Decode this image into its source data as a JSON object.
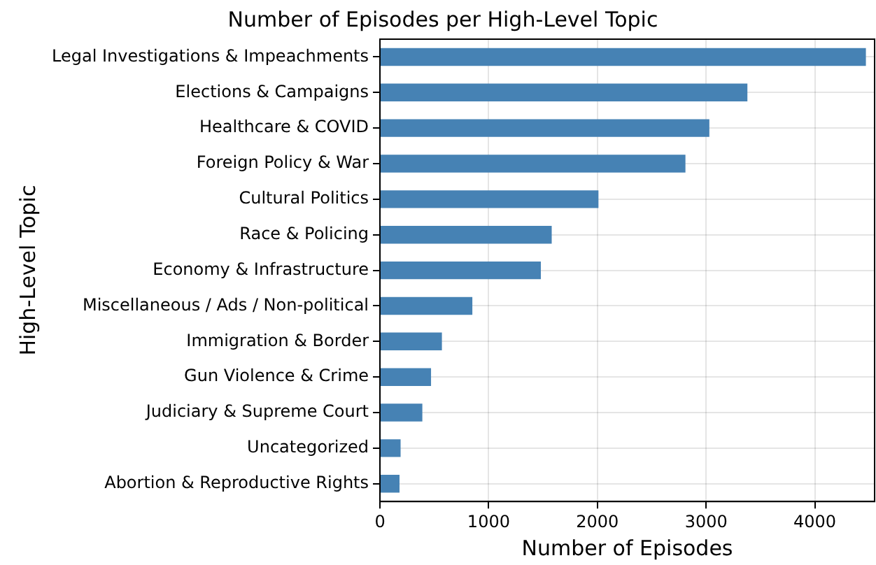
{
  "chart_data": {
    "type": "bar",
    "orientation": "horizontal",
    "title": "Number of Episodes per High-Level Topic",
    "xlabel": "Number of Episodes",
    "ylabel": "High-Level Topic",
    "categories": [
      "Legal Investigations & Impeachments",
      "Elections & Campaigns",
      "Healthcare & COVID",
      "Foreign Policy & War",
      "Cultural Politics",
      "Race & Policing",
      "Economy & Infrastructure",
      "Miscellaneous / Ads / Non-political",
      "Immigration & Border",
      "Gun Violence & Crime",
      "Judiciary & Supreme Court",
      "Uncategorized",
      "Abortion & Reproductive Rights"
    ],
    "values": [
      4470,
      3380,
      3030,
      2810,
      2010,
      1580,
      1480,
      850,
      570,
      470,
      390,
      190,
      180
    ],
    "color": "#4682b4",
    "xlim": [
      0,
      4550
    ],
    "xticks": [
      0,
      1000,
      2000,
      3000,
      4000
    ],
    "grid": true,
    "legend": false
  }
}
